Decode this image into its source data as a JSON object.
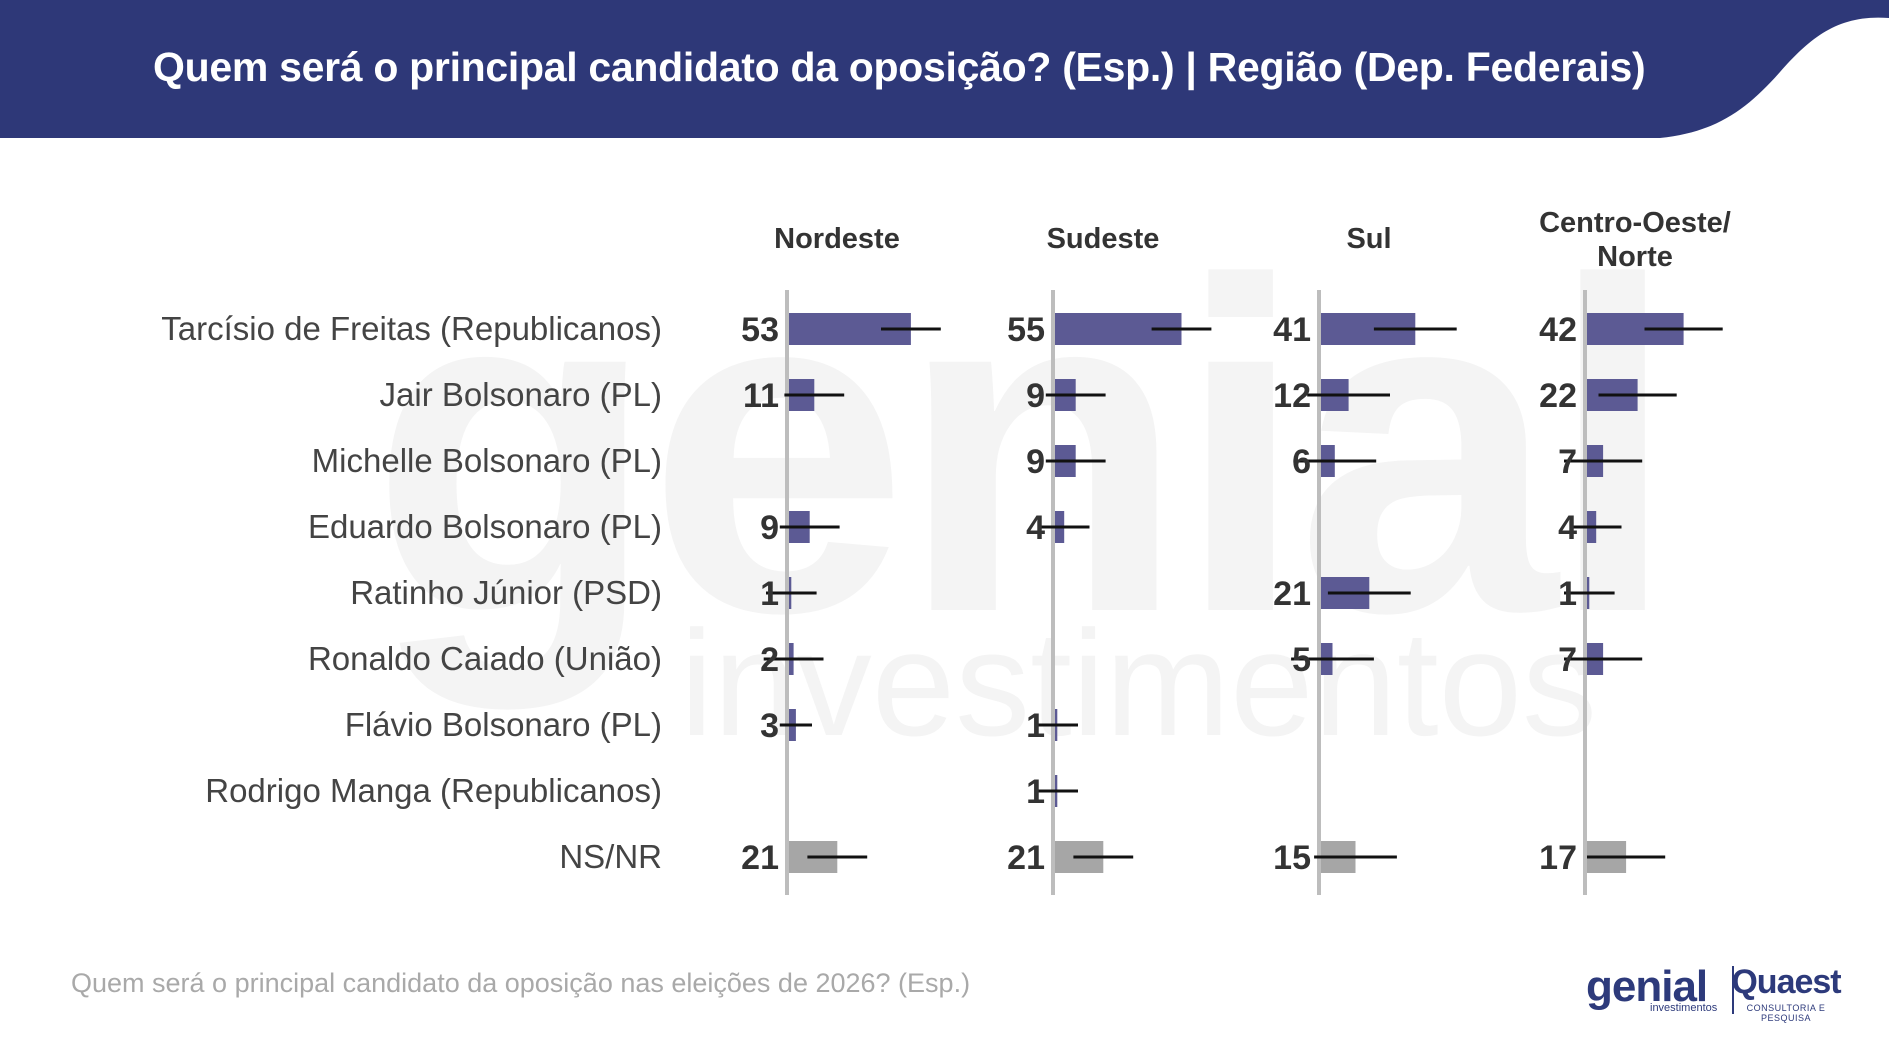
{
  "header": {
    "title": "Quem será o principal candidato da oposição? (Esp.) | Região (Dep. Federais)",
    "color": "#2e3878"
  },
  "watermark": {
    "brand": "genial",
    "sub": "investimentos"
  },
  "chart_data": {
    "type": "bar",
    "title": "Quem será o principal candidato da oposição? (Esp.) | Região (Dep. Federais)",
    "categories": [
      "Tarcísio de Freitas (Republicanos)",
      "Jair Bolsonaro (PL)",
      "Michelle Bolsonaro (PL)",
      "Eduardo Bolsonaro (PL)",
      "Ratinho Júnior (PSD)",
      "Ronaldo Caiado (União)",
      "Flávio Bolsonaro (PL)",
      "Rodrigo Manga (Republicanos)",
      "NS/NR"
    ],
    "series": [
      {
        "name": "Nordeste",
        "values": [
          53,
          11,
          null,
          9,
          1,
          2,
          3,
          null,
          21
        ]
      },
      {
        "name": "Sudeste",
        "values": [
          55,
          9,
          9,
          4,
          null,
          null,
          1,
          1,
          21
        ]
      },
      {
        "name": "Sul",
        "values": [
          41,
          12,
          6,
          null,
          21,
          5,
          null,
          null,
          15
        ]
      },
      {
        "name": "Centro-Oeste/\nNorte",
        "values": [
          42,
          22,
          7,
          4,
          1,
          7,
          null,
          null,
          17
        ]
      }
    ],
    "error_margin": [
      [
        13,
        13,
        null,
        13,
        11,
        13,
        7,
        null,
        13
      ],
      [
        13,
        13,
        13,
        11,
        null,
        null,
        9,
        9,
        13
      ],
      [
        18,
        18,
        18,
        null,
        18,
        18,
        null,
        null,
        18
      ],
      [
        17,
        17,
        17,
        11,
        11,
        17,
        null,
        null,
        17
      ]
    ],
    "colors": {
      "bar": "#5c5a94",
      "nsnr": "#a6a6a6",
      "error": "#111111",
      "axis": "#bdbdbd"
    },
    "xlim": [
      0,
      100
    ]
  },
  "footnote": "Quem será o principal candidato da oposição nas eleições de 2026? (Esp.)",
  "logos": {
    "genial": "genial",
    "genial_sub": "investimentos",
    "quaest": "Quaest",
    "quaest_sub": "CONSULTORIA E PESQUISA"
  }
}
